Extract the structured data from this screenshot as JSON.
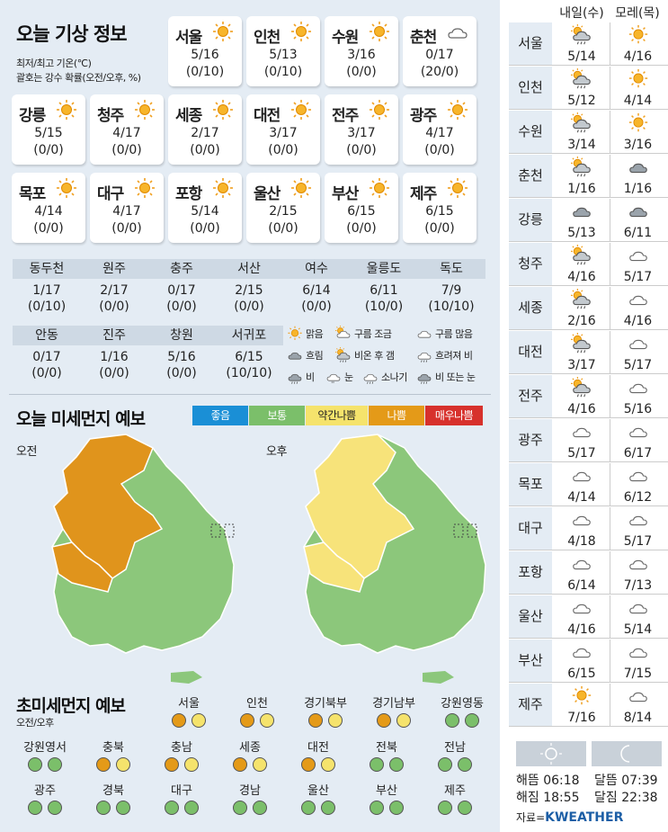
{
  "today": {
    "title": "오늘 기상 정보",
    "note1": "최저/최고 기온(℃)",
    "note2": "괄호는 강수 확률(오전/오후, %)",
    "cards": [
      {
        "name": "서울",
        "temp": "5/16",
        "rain": "(0/10)",
        "icon": "sun"
      },
      {
        "name": "인천",
        "temp": "5/13",
        "rain": "(0/10)",
        "icon": "sun"
      },
      {
        "name": "수원",
        "temp": "3/16",
        "rain": "(0/0)",
        "icon": "sun"
      },
      {
        "name": "춘천",
        "temp": "0/17",
        "rain": "(20/0)",
        "icon": "cloud"
      },
      {
        "name": "강릉",
        "temp": "5/15",
        "rain": "(0/0)",
        "icon": "sun"
      },
      {
        "name": "청주",
        "temp": "4/17",
        "rain": "(0/0)",
        "icon": "sun"
      },
      {
        "name": "세종",
        "temp": "2/17",
        "rain": "(0/0)",
        "icon": "sun"
      },
      {
        "name": "대전",
        "temp": "3/17",
        "rain": "(0/0)",
        "icon": "sun"
      },
      {
        "name": "전주",
        "temp": "3/17",
        "rain": "(0/0)",
        "icon": "sun"
      },
      {
        "name": "광주",
        "temp": "4/17",
        "rain": "(0/0)",
        "icon": "sun"
      },
      {
        "name": "목포",
        "temp": "4/14",
        "rain": "(0/0)",
        "icon": "sun"
      },
      {
        "name": "대구",
        "temp": "4/17",
        "rain": "(0/0)",
        "icon": "sun"
      },
      {
        "name": "포항",
        "temp": "5/14",
        "rain": "(0/0)",
        "icon": "sun"
      },
      {
        "name": "울산",
        "temp": "2/15",
        "rain": "(0/0)",
        "icon": "sun"
      },
      {
        "name": "부산",
        "temp": "6/15",
        "rain": "(0/0)",
        "icon": "sun"
      },
      {
        "name": "제주",
        "temp": "6/15",
        "rain": "(0/0)",
        "icon": "sun"
      }
    ],
    "minor": [
      {
        "name": "동두천",
        "temp": "1/17",
        "rain": "(0/10)"
      },
      {
        "name": "원주",
        "temp": "2/17",
        "rain": "(0/0)"
      },
      {
        "name": "충주",
        "temp": "0/17",
        "rain": "(0/0)"
      },
      {
        "name": "서산",
        "temp": "2/15",
        "rain": "(0/0)"
      },
      {
        "name": "여수",
        "temp": "6/14",
        "rain": "(0/0)"
      },
      {
        "name": "울릉도",
        "temp": "6/11",
        "rain": "(10/0)"
      },
      {
        "name": "독도",
        "temp": "7/9",
        "rain": "(10/10)"
      },
      {
        "name": "안동",
        "temp": "0/17",
        "rain": "(0/0)"
      },
      {
        "name": "진주",
        "temp": "1/16",
        "rain": "(0/0)"
      },
      {
        "name": "창원",
        "temp": "5/16",
        "rain": "(0/0)"
      },
      {
        "name": "서귀포",
        "temp": "6/15",
        "rain": "(10/10)"
      }
    ],
    "legend": [
      {
        "label": "맑음",
        "icon": "sun"
      },
      {
        "label": "구름 조금",
        "icon": "suncloud"
      },
      {
        "label": "구름 많음",
        "icon": "cloud"
      },
      {
        "label": "흐림",
        "icon": "gray"
      },
      {
        "label": "비온 후 갬",
        "icon": "rainsun"
      },
      {
        "label": "흐려져 비",
        "icon": "cloudrain"
      },
      {
        "label": "비",
        "icon": "rain"
      },
      {
        "label": "눈",
        "icon": "snow"
      },
      {
        "label": "소나기",
        "icon": "shower"
      },
      {
        "label": "비 또는 눈",
        "icon": "sleet"
      }
    ]
  },
  "dust": {
    "title": "오늘 미세먼지 예보",
    "am": "오전",
    "pm": "오후",
    "levels": [
      {
        "label": "좋음",
        "color": "#1a8fd6"
      },
      {
        "label": "보통",
        "color": "#7bbf6a"
      },
      {
        "label": "약간나쁨",
        "color": "#f5e36c"
      },
      {
        "label": "나쁨",
        "color": "#e49a18"
      },
      {
        "label": "매우나쁨",
        "color": "#d7312c"
      }
    ]
  },
  "fine": {
    "title": "초미세먼지 예보",
    "sub": "오전/오후",
    "colors": {
      "g": "#7bbf6a",
      "y": "#f5e36c",
      "o": "#e49a18"
    },
    "regions": [
      {
        "name": "서울",
        "am": "o",
        "pm": "y"
      },
      {
        "name": "인천",
        "am": "o",
        "pm": "y"
      },
      {
        "name": "경기북부",
        "am": "o",
        "pm": "y"
      },
      {
        "name": "경기남부",
        "am": "o",
        "pm": "y"
      },
      {
        "name": "강원영동",
        "am": "g",
        "pm": "g"
      },
      {
        "name": "강원영서",
        "am": "g",
        "pm": "g"
      },
      {
        "name": "충북",
        "am": "o",
        "pm": "y"
      },
      {
        "name": "충남",
        "am": "o",
        "pm": "y"
      },
      {
        "name": "세종",
        "am": "o",
        "pm": "y"
      },
      {
        "name": "대전",
        "am": "o",
        "pm": "y"
      },
      {
        "name": "전북",
        "am": "g",
        "pm": "g"
      },
      {
        "name": "전남",
        "am": "g",
        "pm": "g"
      },
      {
        "name": "광주",
        "am": "g",
        "pm": "g"
      },
      {
        "name": "경북",
        "am": "g",
        "pm": "g"
      },
      {
        "name": "대구",
        "am": "g",
        "pm": "g"
      },
      {
        "name": "경남",
        "am": "g",
        "pm": "g"
      },
      {
        "name": "울산",
        "am": "g",
        "pm": "g"
      },
      {
        "name": "부산",
        "am": "g",
        "pm": "g"
      },
      {
        "name": "제주",
        "am": "g",
        "pm": "g"
      }
    ]
  },
  "forecast": {
    "day1": "내일(수)",
    "day2": "모레(목)",
    "rows": [
      {
        "city": "서울",
        "d1": {
          "t": "5/14",
          "i": "rainsun"
        },
        "d2": {
          "t": "4/16",
          "i": "sun"
        }
      },
      {
        "city": "인천",
        "d1": {
          "t": "5/12",
          "i": "rainsun"
        },
        "d2": {
          "t": "4/14",
          "i": "sun"
        }
      },
      {
        "city": "수원",
        "d1": {
          "t": "3/14",
          "i": "rainsun"
        },
        "d2": {
          "t": "3/16",
          "i": "sun"
        }
      },
      {
        "city": "춘천",
        "d1": {
          "t": "1/16",
          "i": "rainsun"
        },
        "d2": {
          "t": "1/16",
          "i": "gray"
        }
      },
      {
        "city": "강릉",
        "d1": {
          "t": "5/13",
          "i": "gray"
        },
        "d2": {
          "t": "6/11",
          "i": "gray"
        }
      },
      {
        "city": "청주",
        "d1": {
          "t": "4/16",
          "i": "rainsun"
        },
        "d2": {
          "t": "5/17",
          "i": "cloud"
        }
      },
      {
        "city": "세종",
        "d1": {
          "t": "2/16",
          "i": "rainsun"
        },
        "d2": {
          "t": "4/16",
          "i": "cloud"
        }
      },
      {
        "city": "대전",
        "d1": {
          "t": "3/17",
          "i": "rainsun"
        },
        "d2": {
          "t": "5/17",
          "i": "cloud"
        }
      },
      {
        "city": "전주",
        "d1": {
          "t": "4/16",
          "i": "rainsun"
        },
        "d2": {
          "t": "5/16",
          "i": "cloud"
        }
      },
      {
        "city": "광주",
        "d1": {
          "t": "5/17",
          "i": "cloud"
        },
        "d2": {
          "t": "6/17",
          "i": "cloud"
        }
      },
      {
        "city": "목포",
        "d1": {
          "t": "4/14",
          "i": "cloud"
        },
        "d2": {
          "t": "6/12",
          "i": "cloud"
        }
      },
      {
        "city": "대구",
        "d1": {
          "t": "4/18",
          "i": "cloud"
        },
        "d2": {
          "t": "5/17",
          "i": "cloud"
        }
      },
      {
        "city": "포항",
        "d1": {
          "t": "6/14",
          "i": "cloud"
        },
        "d2": {
          "t": "7/13",
          "i": "cloud"
        }
      },
      {
        "city": "울산",
        "d1": {
          "t": "4/16",
          "i": "cloud"
        },
        "d2": {
          "t": "5/14",
          "i": "cloud"
        }
      },
      {
        "city": "부산",
        "d1": {
          "t": "6/15",
          "i": "cloud"
        },
        "d2": {
          "t": "7/15",
          "i": "cloud"
        }
      },
      {
        "city": "제주",
        "d1": {
          "t": "7/16",
          "i": "sun"
        },
        "d2": {
          "t": "8/14",
          "i": "cloud"
        }
      }
    ]
  },
  "sun": {
    "rise": "해뜸 06:18",
    "set": "해짐 18:55",
    "moonrise": "달뜸 07:39",
    "moonset": "달짐 22:38"
  },
  "source": {
    "prefix": "자료=",
    "brand": "KWEATHER"
  }
}
